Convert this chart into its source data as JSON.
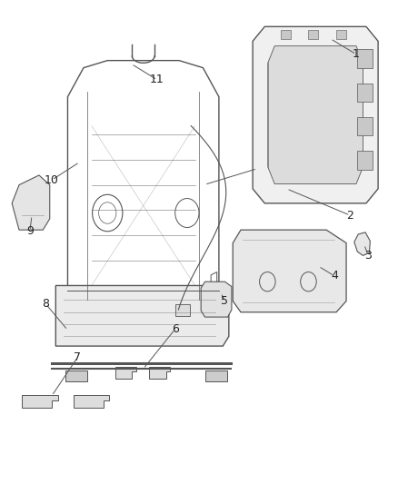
{
  "title": "",
  "background_color": "#ffffff",
  "fig_width": 4.38,
  "fig_height": 5.33,
  "dpi": 100,
  "line_color": "#555555",
  "label_color": "#222222",
  "label_fontsize": 9,
  "leader_items": [
    {
      "num": "1",
      "lpos": [
        0.895,
        0.888
      ],
      "ppos": [
        0.83,
        0.92
      ]
    },
    {
      "num": "2",
      "lpos": [
        0.88,
        0.555
      ],
      "ppos": [
        0.72,
        0.61
      ]
    },
    {
      "num": "3",
      "lpos": [
        0.925,
        0.472
      ],
      "ppos": [
        0.915,
        0.495
      ]
    },
    {
      "num": "4",
      "lpos": [
        0.84,
        0.43
      ],
      "ppos": [
        0.8,
        0.45
      ]
    },
    {
      "num": "5",
      "lpos": [
        0.565,
        0.378
      ],
      "ppos": [
        0.555,
        0.395
      ]
    },
    {
      "num": "6",
      "lpos": [
        0.44,
        0.32
      ],
      "ppos": [
        0.36,
        0.238
      ]
    },
    {
      "num": "7",
      "lpos": [
        0.195,
        0.262
      ],
      "ppos": [
        0.13,
        0.182
      ]
    },
    {
      "num": "8",
      "lpos": [
        0.115,
        0.372
      ],
      "ppos": [
        0.17,
        0.318
      ]
    },
    {
      "num": "9",
      "lpos": [
        0.075,
        0.522
      ],
      "ppos": [
        0.08,
        0.555
      ]
    },
    {
      "num": "10",
      "lpos": [
        0.13,
        0.628
      ],
      "ppos": [
        0.2,
        0.665
      ]
    },
    {
      "num": "11",
      "lpos": [
        0.395,
        0.835
      ],
      "ppos": [
        0.33,
        0.868
      ]
    }
  ]
}
